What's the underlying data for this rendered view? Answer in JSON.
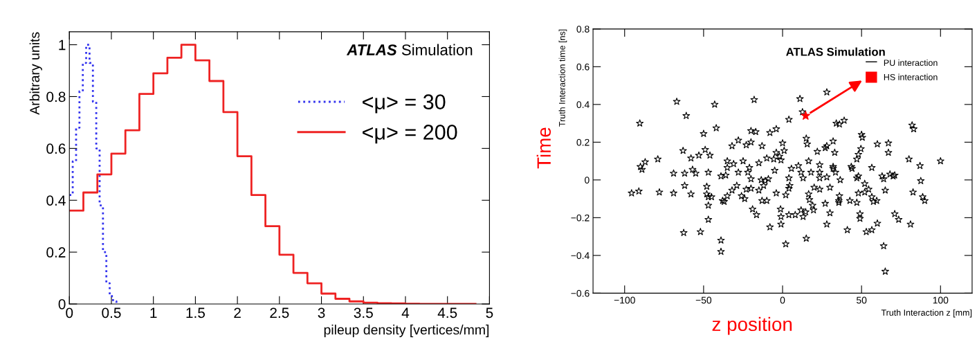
{
  "chart_data": [
    {
      "type": "step",
      "xlabel": "pileup density [vertices/mm]",
      "ylabel": "Arbitrary units",
      "annotations": [
        "ATLAS Simulation"
      ],
      "legend": "right",
      "grid": false,
      "xlim": [
        0,
        5
      ],
      "xticks": [
        0,
        0.5,
        1,
        1.5,
        2,
        2.5,
        3,
        3.5,
        4,
        4.5,
        5
      ],
      "ylim": [
        0,
        1.05
      ],
      "yticks": [
        0,
        0.2,
        0.4,
        0.6,
        0.8,
        1
      ],
      "series": [
        {
          "name": "<μ> = 30",
          "color": "#3333ee",
          "line_style": "dotted",
          "x": [
            0,
            0.04,
            0.08,
            0.12,
            0.16,
            0.2,
            0.24,
            0.28,
            0.32,
            0.36,
            0.4,
            0.44,
            0.48,
            0.52,
            0.56
          ],
          "values": [
            0.42,
            0.55,
            0.68,
            0.82,
            0.93,
            1.0,
            0.93,
            0.78,
            0.6,
            0.38,
            0.2,
            0.08,
            0.03,
            0.01,
            0.0
          ]
        },
        {
          "name": "<μ> = 200",
          "color": "#ee2222",
          "line_style": "solid",
          "x": [
            0,
            0.1667,
            0.3333,
            0.5,
            0.6667,
            0.8333,
            1,
            1.1667,
            1.3333,
            1.5,
            1.6667,
            1.8333,
            2,
            2.1667,
            2.3333,
            2.5,
            2.6667,
            2.8333,
            3,
            3.1667,
            3.3333,
            3.5,
            3.6667,
            3.8333,
            4,
            4.1667,
            4.3333,
            4.5,
            4.6667,
            4.8333
          ],
          "values": [
            0.36,
            0.43,
            0.5,
            0.58,
            0.67,
            0.81,
            0.89,
            0.95,
            1.0,
            0.94,
            0.86,
            0.74,
            0.57,
            0.42,
            0.3,
            0.19,
            0.12,
            0.08,
            0.04,
            0.02,
            0.01,
            0.005,
            0.003,
            0.002,
            0.001,
            0,
            0,
            0,
            0,
            0
          ]
        }
      ]
    },
    {
      "type": "scatter",
      "xlabel": "Truth Interaction z [mm]",
      "ylabel": "Truth Interaction time [ns]",
      "annotations": [
        "ATLAS Simulation",
        "Time",
        "z position"
      ],
      "legend": "top right",
      "grid": false,
      "marker": "star",
      "xlim": [
        -120,
        120
      ],
      "xticks": [
        {
          "value": -100,
          "label": "−100"
        },
        {
          "value": -50,
          "label": "−50"
        },
        0,
        50,
        100
      ],
      "ylim": [
        -0.6,
        0.8
      ],
      "yticks": [
        {
          "value": -0.6,
          "label": "−0.6"
        },
        {
          "value": -0.4,
          "label": "−0.4"
        },
        {
          "value": -0.2,
          "label": "−0.2"
        },
        0,
        0.2,
        0.4,
        0.6,
        0.8
      ],
      "series": [
        {
          "name": "PU interaction",
          "color": "#000000",
          "x": [
            -90.4,
            -67,
            -61,
            -43,
            -42,
            -18,
            -20,
            -17,
            -90,
            -89,
            -87,
            -79,
            -63,
            -58,
            -53,
            -50,
            -49,
            -46,
            -69,
            -62,
            -57,
            -55,
            -47,
            -39,
            -35,
            -35,
            -31,
            -32,
            -28,
            -28,
            -25,
            -23,
            -20,
            -21,
            -22,
            -15,
            -13,
            -95.6,
            -91,
            -78,
            -69,
            -62,
            -58,
            -48,
            -48,
            -47,
            -45,
            -47,
            -47,
            -62.6,
            -52,
            -39,
            -39,
            -36,
            -38,
            -37,
            -35,
            -32,
            -29,
            -26,
            -24,
            -23,
            -20,
            -20,
            -19,
            -16.5,
            -15,
            -13.5,
            -13,
            11,
            28,
            12.6,
            4,
            -8,
            -4,
            34,
            36,
            39,
            50,
            50.5,
            82,
            83,
            15,
            15.6,
            0,
            1,
            -4,
            -2,
            -10,
            -5.6,
            -1,
            22,
            27,
            28,
            32,
            33,
            49.6,
            48,
            47,
            60,
            67,
            67,
            80,
            87,
            100,
            10,
            16.5,
            23.5,
            32,
            43.5,
            56.5,
            -5,
            5.6,
            11.7,
            18,
            23.5,
            33.5,
            48,
            63,
            68,
            71,
            32,
            44,
            -11,
            -9,
            -12,
            4,
            4.5,
            4,
            13,
            23.5,
            28,
            36.5,
            47,
            52,
            64,
            70,
            87.5,
            20,
            23.5,
            30,
            16.5,
            -4,
            2,
            -10,
            17,
            27,
            36,
            35.6,
            35.6,
            42.6,
            47,
            48,
            52,
            54.5,
            56.5,
            57.5,
            59.6,
            65,
            82.6,
            88.7,
            90,
            19,
            19.6,
            11.7,
            14.6,
            13,
            8,
            4,
            -1.3,
            -1,
            -1,
            -8,
            28,
            30,
            49,
            49,
            60,
            56.5,
            53,
            41,
            71,
            73.5,
            81,
            15,
            2,
            64,
            65
          ],
          "values": [
            0.3,
            0.415,
            0.34,
            0.4,
            0.275,
            0.425,
            0.26,
            0.255,
            0.07,
            0.055,
            0.095,
            0.11,
            0.155,
            0.115,
            0.13,
            0.245,
            0.16,
            0.13,
            0.035,
            0.035,
            0.055,
            0.035,
            0.04,
            0.02,
            0.1,
            0.065,
            0.085,
            0.18,
            0.21,
            0.04,
            0.1,
            0.185,
            0.2,
            0.065,
            0.04,
            0.09,
            0.18,
            -0.07,
            -0.06,
            -0.065,
            -0.07,
            -0.03,
            -0.075,
            -0.035,
            -0.075,
            -0.09,
            -0.09,
            -0.135,
            -0.21,
            -0.28,
            -0.275,
            -0.32,
            -0.38,
            0.025,
            -0.11,
            -0.115,
            -0.085,
            -0.055,
            -0.03,
            -0.085,
            -0.1,
            -0.05,
            -0.045,
            0.005,
            -0.155,
            -0.185,
            -0.055,
            0.0,
            -0.11,
            0.43,
            0.465,
            0.36,
            0.32,
            0.25,
            0.27,
            0.3,
            0.295,
            0.315,
            0.24,
            0.225,
            0.29,
            0.27,
            0.22,
            0.19,
            0.195,
            0.155,
            0.145,
            0.125,
            0.115,
            0.11,
            0.105,
            0.15,
            0.17,
            0.18,
            0.205,
            0.145,
            0.165,
            0.135,
            0.11,
            0.19,
            0.195,
            0.145,
            0.11,
            0.075,
            0.1,
            0.075,
            0.1,
            0.08,
            0.07,
            0.07,
            0.065,
            0.05,
            0.06,
            0.04,
            0.04,
            0.04,
            0.04,
            0.02,
            0.02,
            0.03,
            0.025,
            0.06,
            0.06,
            -0.005,
            0.005,
            -0.03,
            0.01,
            -0.03,
            -0.045,
            0.01,
            0.01,
            0.015,
            0.0,
            0.01,
            -0.02,
            0.005,
            0.02,
            -0.005,
            -0.04,
            -0.05,
            -0.04,
            -0.075,
            -0.07,
            -0.08,
            -0.11,
            -0.105,
            -0.125,
            -0.085,
            -0.11,
            -0.12,
            -0.11,
            -0.12,
            -0.07,
            -0.065,
            -0.05,
            -0.09,
            -0.115,
            -0.11,
            -0.055,
            -0.065,
            -0.09,
            -0.11,
            -0.135,
            -0.16,
            -0.16,
            -0.17,
            -0.195,
            -0.185,
            -0.185,
            -0.155,
            -0.195,
            -0.235,
            -0.25,
            -0.235,
            -0.175,
            -0.18,
            -0.205,
            -0.23,
            -0.265,
            -0.275,
            -0.265,
            -0.18,
            -0.21,
            -0.235,
            -0.31,
            -0.34,
            -0.35,
            -0.485
          ]
        },
        {
          "name": "HS interaction",
          "color": "#ff0000",
          "x": [
            14.6
          ],
          "values": [
            0.34
          ]
        }
      ]
    }
  ]
}
